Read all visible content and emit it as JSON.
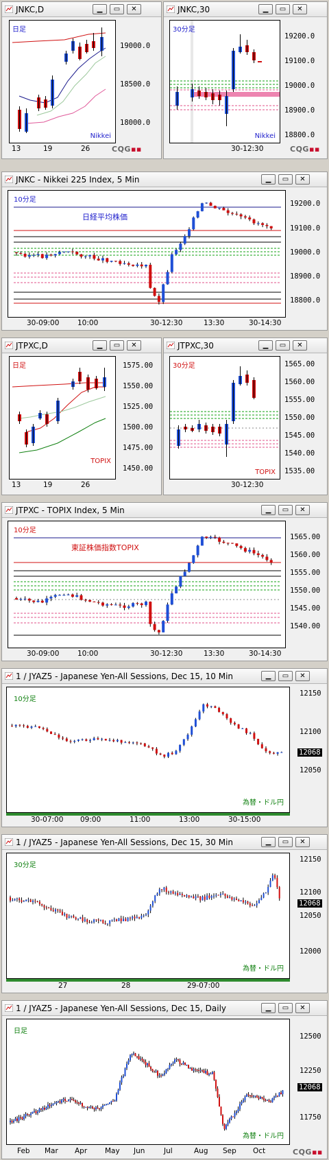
{
  "colors": {
    "up": "#1f4fd6",
    "down": "#d01010",
    "red_line": "#d01010",
    "navy_line": "#1a1a8c",
    "green_dash": "#12a012",
    "pink_dash": "#e0508a",
    "hilite": "#e5508f"
  },
  "windows": [
    {
      "id": "jnkc_d",
      "title": "JNKC,D",
      "label": "日足",
      "label_color": "#1f1fcc",
      "brand": "Nikkei",
      "brand_color": "#1f1fcc",
      "yticks": [
        "19000.0",
        "18500.0",
        "18000.0"
      ],
      "xticks": [
        "13",
        "19",
        "26"
      ],
      "cqg": "CQG"
    },
    {
      "id": "jnkc_30",
      "title": "JNKC,30",
      "label": "30分足",
      "label_color": "#1f1fcc",
      "brand": "Nikkei",
      "brand_color": "#1f1fcc",
      "yticks": [
        "19200.0",
        "19100.0",
        "19000.0",
        "18900.0",
        "18800.0"
      ],
      "xticks": [
        "30-12:30"
      ],
      "cqg": "CQG"
    },
    {
      "id": "jnkc_5",
      "title": "JNKC - Nikkei 225 Index, 5 Min",
      "label": "10分足",
      "label_color": "#1f1fcc",
      "note": "日経平均株価",
      "note_color": "#1f1fcc",
      "yticks": [
        "19200.0",
        "19100.0",
        "19000.0",
        "18900.0",
        "18800.0"
      ],
      "xticks": [
        "30-09:00",
        "10:00",
        "30-12:30",
        "13:30",
        "30-14:30"
      ]
    },
    {
      "id": "jtpxc_d",
      "title": "JTPXC,D",
      "label": "日足",
      "label_color": "#d01010",
      "brand": "TOPIX",
      "brand_color": "#d01010",
      "yticks": [
        "1575.00",
        "1550.00",
        "1525.00",
        "1500.00",
        "1475.00",
        "1450.00"
      ],
      "xticks": [
        "13",
        "19",
        "26"
      ]
    },
    {
      "id": "jtpxc_30",
      "title": "JTPXC,30",
      "label": "30分足",
      "label_color": "#d01010",
      "brand": "TOPIX",
      "brand_color": "#d01010",
      "yticks": [
        "1565.00",
        "1560.00",
        "1555.00",
        "1550.00",
        "1545.00",
        "1540.00",
        "1535.00"
      ],
      "xticks": [
        "30-12:30"
      ]
    },
    {
      "id": "jtpxc_5",
      "title": "JTPXC - TOPIX Index, 5 Min",
      "label": "10分足",
      "label_color": "#d01010",
      "note": "東証株価指数TOPIX",
      "note_color": "#d01010",
      "yticks": [
        "1565.00",
        "1560.00",
        "1555.00",
        "1550.00",
        "1545.00",
        "1540.00"
      ],
      "xticks": [
        "30-09:00",
        "10:00",
        "30-12:30",
        "13:30",
        "30-14:30"
      ]
    },
    {
      "id": "jyaz5_10",
      "title": "1 / JYAZ5 - Japanese Yen-All Sessions, Dec 15, 10 Min",
      "label": "10分足",
      "label_color": "#108010",
      "brand": "為替・ドル円",
      "brand_color": "#108010",
      "yticks": [
        "12150",
        "12100",
        "12050"
      ],
      "last": "12068",
      "xticks": [
        "30-07:00",
        "09:00",
        "11:00",
        "13:00",
        "30-15:00"
      ]
    },
    {
      "id": "jyaz5_30",
      "title": "1 / JYAZ5 - Japanese Yen-All Sessions, Dec 15, 30 Min",
      "label": "30分足",
      "label_color": "#108010",
      "brand": "為替・ドル円",
      "brand_color": "#108010",
      "yticks": [
        "12150",
        "12100",
        "12050",
        "12000"
      ],
      "last": "12068",
      "xticks": [
        "27",
        "28",
        "29-07:00"
      ]
    },
    {
      "id": "jyaz5_d",
      "title": "1 / JYAZ5 - Japanese Yen-All Sessions, Dec 15, Daily",
      "label": "日足",
      "label_color": "#108010",
      "brand": "為替・ドル円",
      "brand_color": "#108010",
      "yticks": [
        "12500",
        "12250",
        "11750"
      ],
      "last": "12068",
      "xticks": [
        "Feb",
        "Mar",
        "Apr",
        "May",
        "Jun",
        "Jul",
        "Aug",
        "Sep",
        "Oct"
      ],
      "cqg": "CQG"
    }
  ],
  "buttons": {
    "minimize": "▁",
    "restore": "▭",
    "close": "✕"
  }
}
